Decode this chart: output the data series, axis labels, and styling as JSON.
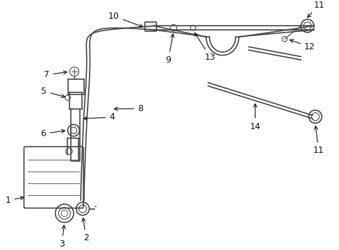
{
  "bg_color": "#ffffff",
  "line_color": "#444444",
  "label_color": "#111111",
  "fontsize": 9,
  "fig_w": 4.89,
  "fig_h": 3.6,
  "dpi": 100
}
